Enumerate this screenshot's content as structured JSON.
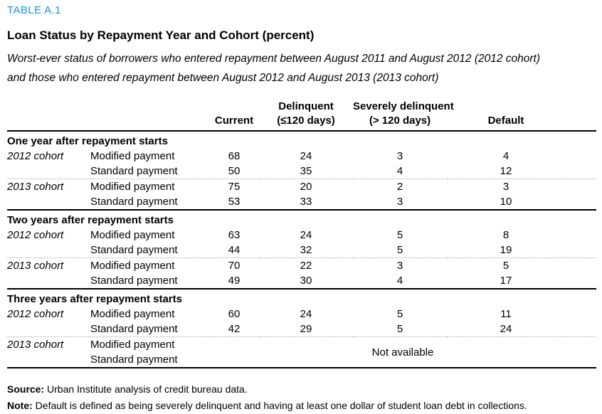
{
  "page": {
    "table_label": "TABLE A.1",
    "title": "Loan Status by Repayment Year and Cohort (percent)",
    "subtitle_line1": "Worst-ever status of borrowers who entered repayment between August 2011 and August 2012 (2012 cohort)",
    "subtitle_line2": "and those who entered repayment between August 2012 and August 2013 (2013 cohort)",
    "accent_color": "#1696d8"
  },
  "table": {
    "column_headers": {
      "current": "Current",
      "delinquent_line1": "Delinquent",
      "delinquent_line2": "(≤120 days)",
      "severely_line1": "Severely delinquent",
      "severely_line2": "(> 120 days)",
      "default": "Default"
    },
    "sections": [
      {
        "title": "One year after repayment starts",
        "rows": [
          {
            "cohort": "2012 cohort",
            "payment": "Modified payment",
            "values": [
              "68",
              "24",
              "3",
              "4"
            ]
          },
          {
            "cohort": "",
            "payment": "Standard payment",
            "values": [
              "50",
              "35",
              "4",
              "12"
            ]
          },
          {
            "cohort": "2013 cohort",
            "payment": "Modified payment",
            "values": [
              "75",
              "20",
              "2",
              "3"
            ]
          },
          {
            "cohort": "",
            "payment": "Standard payment",
            "values": [
              "53",
              "33",
              "3",
              "10"
            ]
          }
        ]
      },
      {
        "title": "Two years after repayment starts",
        "rows": [
          {
            "cohort": "2012 cohort",
            "payment": "Modified payment",
            "values": [
              "63",
              "24",
              "5",
              "8"
            ]
          },
          {
            "cohort": "",
            "payment": "Standard payment",
            "values": [
              "44",
              "32",
              "5",
              "19"
            ]
          },
          {
            "cohort": "2013 cohort",
            "payment": "Modified payment",
            "values": [
              "70",
              "22",
              "3",
              "5"
            ]
          },
          {
            "cohort": "",
            "payment": "Standard payment",
            "values": [
              "49",
              "30",
              "4",
              "17"
            ]
          }
        ]
      },
      {
        "title": "Three years after repayment starts",
        "rows": [
          {
            "cohort": "2012 cohort",
            "payment": "Modified payment",
            "values": [
              "60",
              "24",
              "5",
              "11"
            ]
          },
          {
            "cohort": "",
            "payment": "Standard payment",
            "values": [
              "42",
              "29",
              "5",
              "24"
            ]
          }
        ],
        "na_block": {
          "cohort": "2013 cohort",
          "payment_row1": "Modified payment",
          "payment_row2": "Standard payment",
          "message": "Not available"
        }
      }
    ]
  },
  "footer": {
    "source_label": "Source:",
    "source_text": " Urban Institute analysis of credit bureau data.",
    "note_label": "Note:",
    "note_text": " Default is defined as being severely delinquent and having at least one dollar of student loan debt in collections."
  },
  "chart_data": {
    "type": "table",
    "title": "Loan Status by Repayment Year and Cohort (percent)",
    "columns": [
      "Current",
      "Delinquent (≤120 days)",
      "Severely delinquent (> 120 days)",
      "Default"
    ],
    "rows": [
      {
        "period": "One year after repayment starts",
        "cohort": "2012 cohort",
        "payment": "Modified payment",
        "values": [
          68,
          24,
          3,
          4
        ]
      },
      {
        "period": "One year after repayment starts",
        "cohort": "2012 cohort",
        "payment": "Standard payment",
        "values": [
          50,
          35,
          4,
          12
        ]
      },
      {
        "period": "One year after repayment starts",
        "cohort": "2013 cohort",
        "payment": "Modified payment",
        "values": [
          75,
          20,
          2,
          3
        ]
      },
      {
        "period": "One year after repayment starts",
        "cohort": "2013 cohort",
        "payment": "Standard payment",
        "values": [
          53,
          33,
          3,
          10
        ]
      },
      {
        "period": "Two years after repayment starts",
        "cohort": "2012 cohort",
        "payment": "Modified payment",
        "values": [
          63,
          24,
          5,
          8
        ]
      },
      {
        "period": "Two years after repayment starts",
        "cohort": "2012 cohort",
        "payment": "Standard payment",
        "values": [
          44,
          32,
          5,
          19
        ]
      },
      {
        "period": "Two years after repayment starts",
        "cohort": "2013 cohort",
        "payment": "Modified payment",
        "values": [
          70,
          22,
          3,
          5
        ]
      },
      {
        "period": "Two years after repayment starts",
        "cohort": "2013 cohort",
        "payment": "Standard payment",
        "values": [
          49,
          30,
          4,
          17
        ]
      },
      {
        "period": "Three years after repayment starts",
        "cohort": "2012 cohort",
        "payment": "Modified payment",
        "values": [
          60,
          24,
          5,
          11
        ]
      },
      {
        "period": "Three years after repayment starts",
        "cohort": "2012 cohort",
        "payment": "Standard payment",
        "values": [
          42,
          29,
          5,
          24
        ]
      },
      {
        "period": "Three years after repayment starts",
        "cohort": "2013 cohort",
        "payment": "Modified payment",
        "values": null,
        "note": "Not available"
      },
      {
        "period": "Three years after repayment starts",
        "cohort": "2013 cohort",
        "payment": "Standard payment",
        "values": null,
        "note": "Not available"
      }
    ]
  }
}
